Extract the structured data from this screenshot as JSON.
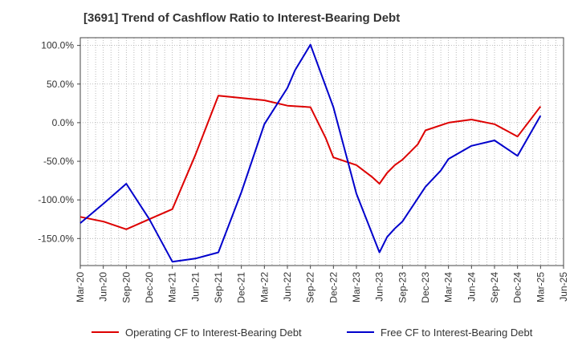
{
  "chart_data": {
    "type": "line",
    "title": "[3691]  Trend of Cashflow Ratio to Interest-Bearing Debt",
    "xlabel": "",
    "ylabel": "",
    "x_tick_labels": [
      "Mar-20",
      "Jun-20",
      "Sep-20",
      "Dec-20",
      "Mar-21",
      "Jun-21",
      "Sep-21",
      "Dec-21",
      "Mar-22",
      "Jun-22",
      "Sep-22",
      "Dec-22",
      "Mar-23",
      "Jun-23",
      "Sep-23",
      "Dec-23",
      "Mar-24",
      "Jun-24",
      "Sep-24",
      "Dec-24",
      "Mar-25",
      "Jun-25"
    ],
    "y_ticks": [
      100,
      50,
      0,
      -50,
      -100,
      -150
    ],
    "y_tick_labels": [
      "100.0%",
      "50.0%",
      "0.0%",
      "-50.0%",
      "-100.0%",
      "-150.0%"
    ],
    "ylim": [
      -185,
      110
    ],
    "grid": true,
    "legend_position": "bottom",
    "series": [
      {
        "name": "Operating CF to Interest-Bearing Debt",
        "color": "#dd0000",
        "points": [
          [
            "Mar-20",
            -122
          ],
          [
            "Jun-20",
            -128
          ],
          [
            "Sep-20",
            -138
          ],
          [
            "Dec-20",
            -125
          ],
          [
            "Mar-21",
            -112
          ],
          [
            "Jun-21",
            -42
          ],
          [
            "Sep-21",
            35
          ],
          [
            "Dec-21",
            32
          ],
          [
            "Mar-22",
            29
          ],
          [
            "Jun-22",
            22
          ],
          [
            "Sep-22",
            20
          ],
          [
            "Nov-22",
            -20
          ],
          [
            "Dec-22",
            -45
          ],
          [
            "Mar-23",
            -55
          ],
          [
            "May-23",
            -70
          ],
          [
            "Jun-23",
            -79
          ],
          [
            "Jul-23",
            -65
          ],
          [
            "Aug-23",
            -55
          ],
          [
            "Sep-23",
            -48
          ],
          [
            "Nov-23",
            -28
          ],
          [
            "Dec-23",
            -10
          ],
          [
            "Mar-24",
            0
          ],
          [
            "Jun-24",
            4
          ],
          [
            "Sep-24",
            -2
          ],
          [
            "Dec-24",
            -18
          ],
          [
            "Feb-25",
            8
          ],
          [
            "Mar-25",
            21
          ]
        ]
      },
      {
        "name": "Free CF to Interest-Bearing Debt",
        "color": "#0000cc",
        "points": [
          [
            "Mar-20",
            -130
          ],
          [
            "Jun-20",
            -105
          ],
          [
            "Sep-20",
            -79
          ],
          [
            "Dec-20",
            -125
          ],
          [
            "Mar-21",
            -180
          ],
          [
            "Jun-21",
            -176
          ],
          [
            "Sep-21",
            -168
          ],
          [
            "Dec-21",
            -90
          ],
          [
            "Mar-22",
            -2
          ],
          [
            "Jun-22",
            45
          ],
          [
            "Jul-22",
            68
          ],
          [
            "Sep-22",
            101
          ],
          [
            "Dec-22",
            20
          ],
          [
            "Mar-23",
            -92
          ],
          [
            "Jun-23",
            -168
          ],
          [
            "Jul-23",
            -148
          ],
          [
            "Aug-23",
            -137
          ],
          [
            "Sep-23",
            -128
          ],
          [
            "Dec-23",
            -83
          ],
          [
            "Feb-24",
            -62
          ],
          [
            "Mar-24",
            -47
          ],
          [
            "Jun-24",
            -30
          ],
          [
            "Sep-24",
            -23
          ],
          [
            "Dec-24",
            -43
          ],
          [
            "Mar-25",
            9
          ]
        ]
      }
    ]
  }
}
